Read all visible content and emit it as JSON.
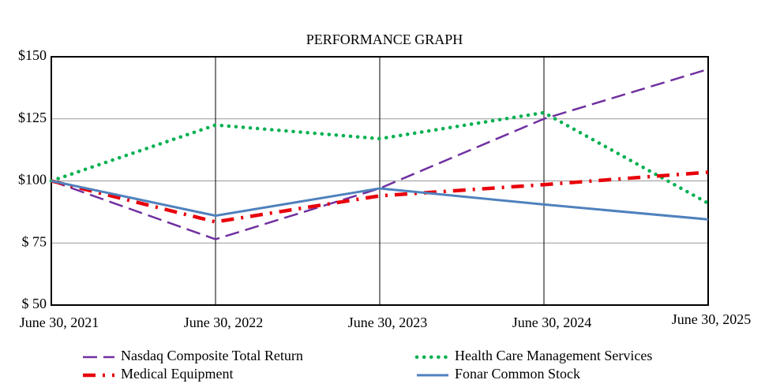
{
  "chart_data": {
    "type": "line",
    "title": "PERFORMANCE GRAPH",
    "categories": [
      "June 30, 2021",
      "June 30, 2022",
      "June 30, 2023",
      "June 30, 2024",
      "June 30, 2025"
    ],
    "series": [
      {
        "name": "Nasdaq Composite Total Return",
        "color": "#7030a0",
        "style": "dashed",
        "values": [
          100,
          76.5,
          97,
          125,
          145
        ]
      },
      {
        "name": "Health Care Management Services",
        "color": "#00b050",
        "style": "dotted",
        "values": [
          100,
          122.5,
          117,
          127.5,
          91
        ]
      },
      {
        "name": "Medical Equipment",
        "color": "#e8000b",
        "style": "dashdot",
        "values": [
          100,
          83.5,
          94,
          98.5,
          103.5
        ]
      },
      {
        "name": "Fonar Common Stock",
        "color": "#4f81bd",
        "style": "solid",
        "values": [
          100,
          86,
          97,
          90.5,
          84.5
        ]
      }
    ],
    "ylim": [
      50,
      150
    ],
    "yticks": [
      {
        "value": 50,
        "label": "$ 50"
      },
      {
        "value": 75,
        "label": "$ 75"
      },
      {
        "value": 100,
        "label": "$100"
      },
      {
        "value": 125,
        "label": "$125"
      },
      {
        "value": 150,
        "label": "$150"
      }
    ],
    "grid": true
  }
}
